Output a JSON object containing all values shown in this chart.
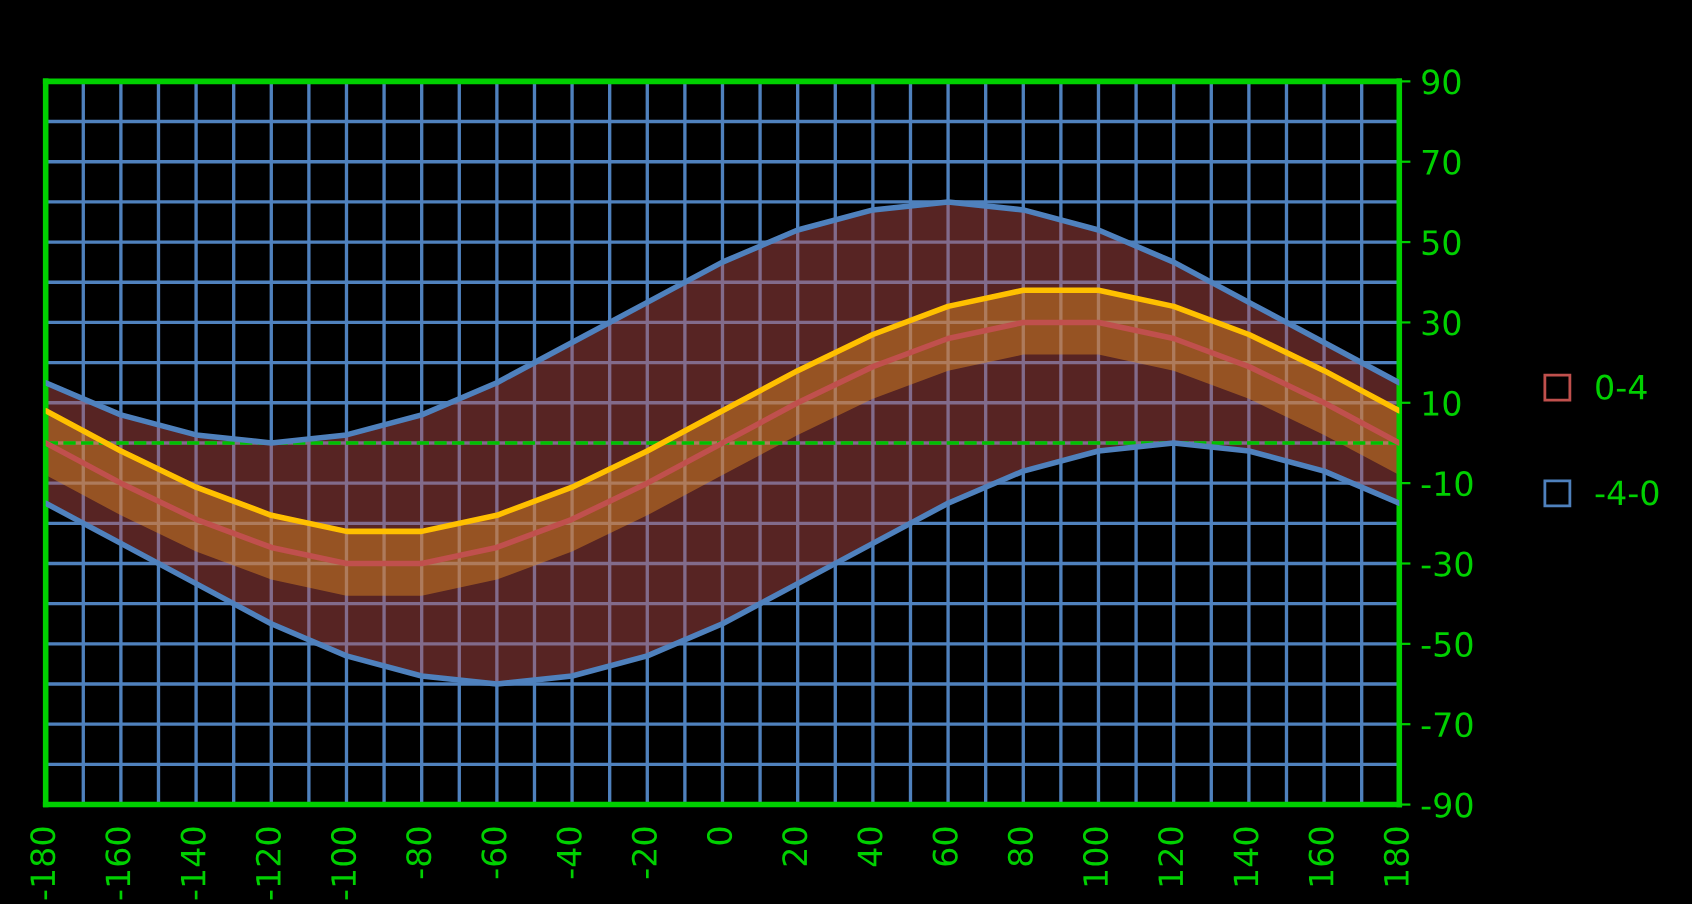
{
  "chart_data": {
    "type": "line",
    "x": [
      -180,
      -160,
      -140,
      -120,
      -100,
      -80,
      -60,
      -40,
      -20,
      0,
      20,
      40,
      60,
      80,
      100,
      120,
      140,
      160,
      180
    ],
    "series": [
      {
        "color": "#ffc000",
        "values": [
          8,
          -2,
          -11,
          -18,
          -22,
          -22,
          -18,
          -11,
          -2,
          8,
          18,
          27,
          34,
          38,
          38,
          34,
          27,
          18,
          8
        ],
        "lower": [
          -8,
          -18,
          -27,
          -34,
          -38,
          -38,
          -34,
          -27,
          -18,
          -8,
          2,
          11,
          18,
          22,
          22,
          18,
          11,
          2,
          -8
        ],
        "upper": [
          8,
          -2,
          -11,
          -18,
          -22,
          -22,
          -18,
          -11,
          -2,
          8,
          18,
          27,
          34,
          38,
          38,
          34,
          27,
          18,
          8
        ]
      },
      {
        "name": "0-4",
        "color": "#c0504d",
        "values": [
          0,
          -10,
          -19,
          -26,
          -30,
          -30,
          -26,
          -19,
          -10,
          0,
          10,
          19,
          26,
          30,
          30,
          26,
          19,
          10,
          0
        ],
        "lower": [
          -15,
          -25,
          -35,
          -45,
          -53,
          -58,
          -60,
          -58,
          -53,
          -45,
          -35,
          -25,
          -15,
          -7,
          -2,
          0,
          -2,
          -7,
          -15
        ],
        "upper": [
          15,
          7,
          2,
          0,
          2,
          7,
          15,
          25,
          35,
          45,
          53,
          58,
          60,
          58,
          53,
          45,
          35,
          25,
          15
        ]
      },
      {
        "name": "-4-0",
        "color": "#4f81bd",
        "values": [
          15,
          7,
          2,
          0,
          2,
          7,
          15,
          25,
          35,
          45,
          53,
          58,
          60,
          58,
          53,
          45,
          35,
          25,
          15
        ]
      },
      {
        "color": "#4f81bd",
        "values": [
          -15,
          -25,
          -35,
          -45,
          -53,
          -58,
          -60,
          -58,
          -53,
          -45,
          -35,
          -25,
          -15,
          -7,
          -2,
          0,
          -2,
          -7,
          -15
        ]
      }
    ],
    "xlim": [
      -180,
      180
    ],
    "xticks": [
      -180,
      -160,
      -140,
      -120,
      -100,
      -80,
      -60,
      -40,
      -20,
      0,
      20,
      40,
      60,
      80,
      100,
      120,
      140,
      160,
      180
    ],
    "ylim": [
      -90,
      90
    ],
    "yticks": [
      -90,
      -70,
      -50,
      -30,
      -10,
      10,
      30,
      50,
      70,
      90
    ],
    "ref_lines": [
      {
        "axis": "y",
        "value": 0,
        "color": "#00c000",
        "line_style": "dashed"
      }
    ],
    "grid": true,
    "legend": "right",
    "marker": "none",
    "line_style": "solid"
  }
}
